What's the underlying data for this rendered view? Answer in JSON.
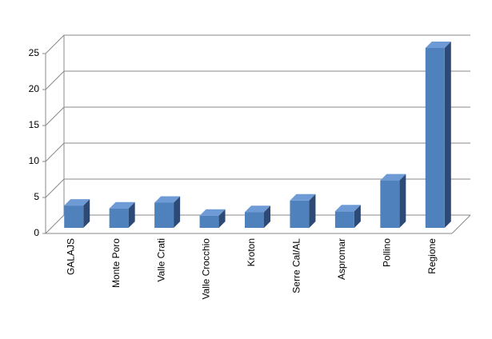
{
  "chart_data": {
    "type": "bar3d",
    "categories": [
      "GALAJS",
      "Monte Poro",
      "Valle Crati",
      "Valle Crocchio",
      "Kroton",
      "Serre Cal/AL",
      "Aspromar",
      "Pollino",
      "Regione"
    ],
    "values": [
      3.1,
      2.7,
      3.5,
      1.7,
      2.2,
      3.8,
      2.3,
      6.6,
      25
    ],
    "color": "#4f81bd",
    "ylim": [
      0,
      25
    ],
    "yticks": [
      0,
      5,
      10,
      15,
      20,
      25
    ],
    "grid": true
  }
}
